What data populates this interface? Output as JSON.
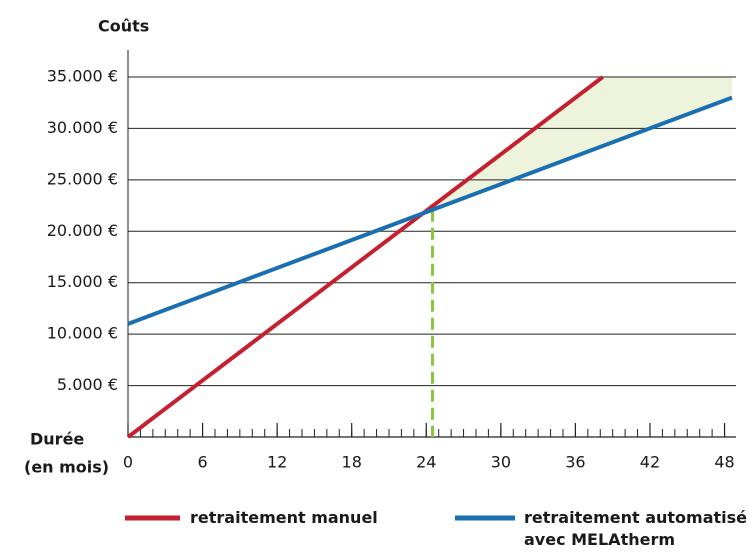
{
  "chart_data": {
    "type": "line",
    "ylabel": "Coûts",
    "xlabel": "Durée",
    "xlabel_unit": "(en mois)",
    "xlim": [
      0,
      48.6
    ],
    "xticks": [
      0,
      6,
      12,
      18,
      24,
      30,
      36,
      42,
      48
    ],
    "minor_xtick_step": 1,
    "ylim": [
      0,
      35000
    ],
    "yticks": [
      {
        "value": 5000,
        "label": "5.000 €"
      },
      {
        "value": 10000,
        "label": "10.000 €"
      },
      {
        "value": 15000,
        "label": "15.000 €"
      },
      {
        "value": 20000,
        "label": "20.000 €"
      },
      {
        "value": 25000,
        "label": "25.000 €"
      },
      {
        "value": 30000,
        "label": "30.000 €"
      },
      {
        "value": 35000,
        "label": "35.000 €"
      }
    ],
    "grid": true,
    "breakeven_x": 24.5,
    "breakeven_color": "#8cc63f",
    "savings_color": "#eef3dc",
    "series": [
      {
        "name": "retraitement manuel",
        "color": "#c4202f",
        "x": [
          0,
          38.2
        ],
        "values": [
          0,
          35000
        ]
      },
      {
        "name": "retraitement automatisé avec MELAtherm",
        "color": "#1a6fb0",
        "x": [
          0,
          48.6
        ],
        "values": [
          11000,
          33000
        ]
      }
    ]
  }
}
